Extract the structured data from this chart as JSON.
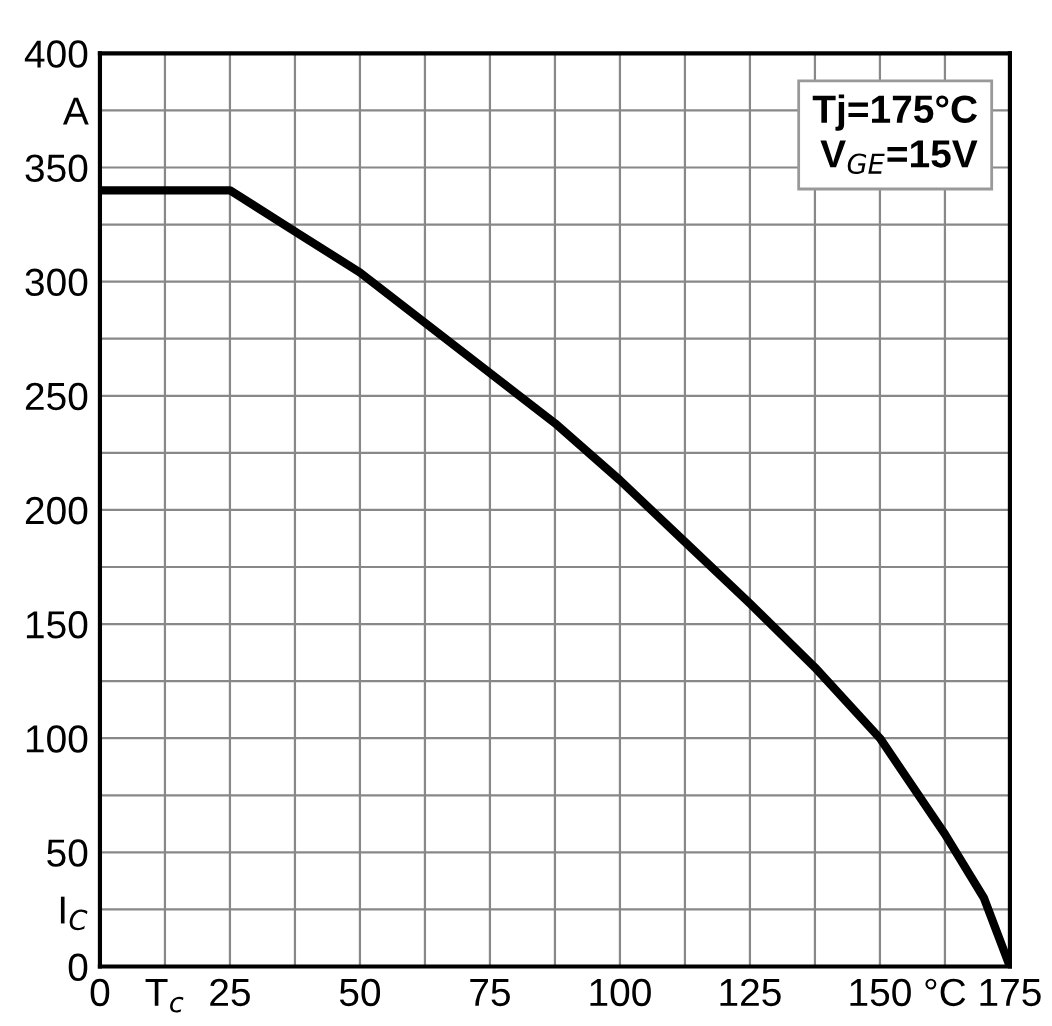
{
  "chart_data": {
    "type": "line",
    "x": [
      0,
      23,
      25,
      37.5,
      50,
      62.5,
      75,
      87.5,
      100,
      112.5,
      125,
      137.5,
      150,
      162.5,
      170,
      175
    ],
    "series": [
      {
        "color": "#000000",
        "values": [
          340,
          340,
          340,
          322,
          304,
          282,
          260,
          238,
          213,
          186,
          159,
          131,
          100,
          58,
          30,
          0
        ]
      }
    ],
    "xlim": [
      0,
      175
    ],
    "ylim": [
      0,
      400
    ],
    "xticks": [
      0,
      {
        "value": 12.5,
        "label": "T$_{c}$"
      },
      25,
      {
        "value": 37.5,
        "label": null
      },
      50,
      {
        "value": 62.5,
        "label": null
      },
      75,
      {
        "value": 87.5,
        "label": null
      },
      100,
      {
        "value": 112.5,
        "label": null
      },
      125,
      {
        "value": 137.5,
        "label": null
      },
      150,
      {
        "value": 162.5,
        "label": "°C"
      },
      175
    ],
    "yticks": [
      0,
      {
        "value": 25,
        "label": "I$_{C}$"
      },
      50,
      {
        "value": 75,
        "label": null
      },
      100,
      {
        "value": 125,
        "label": null
      },
      150,
      {
        "value": 175,
        "label": null
      },
      200,
      {
        "value": 225,
        "label": null
      },
      250,
      {
        "value": 275,
        "label": null
      },
      300,
      {
        "value": 325,
        "label": null
      },
      350,
      {
        "value": 375,
        "label": "A"
      },
      400
    ],
    "grid": true,
    "marker": "none",
    "line_style": "solid",
    "annotations": [
      "Tj=175°C\nV$_{GE}$=15V"
    ]
  }
}
